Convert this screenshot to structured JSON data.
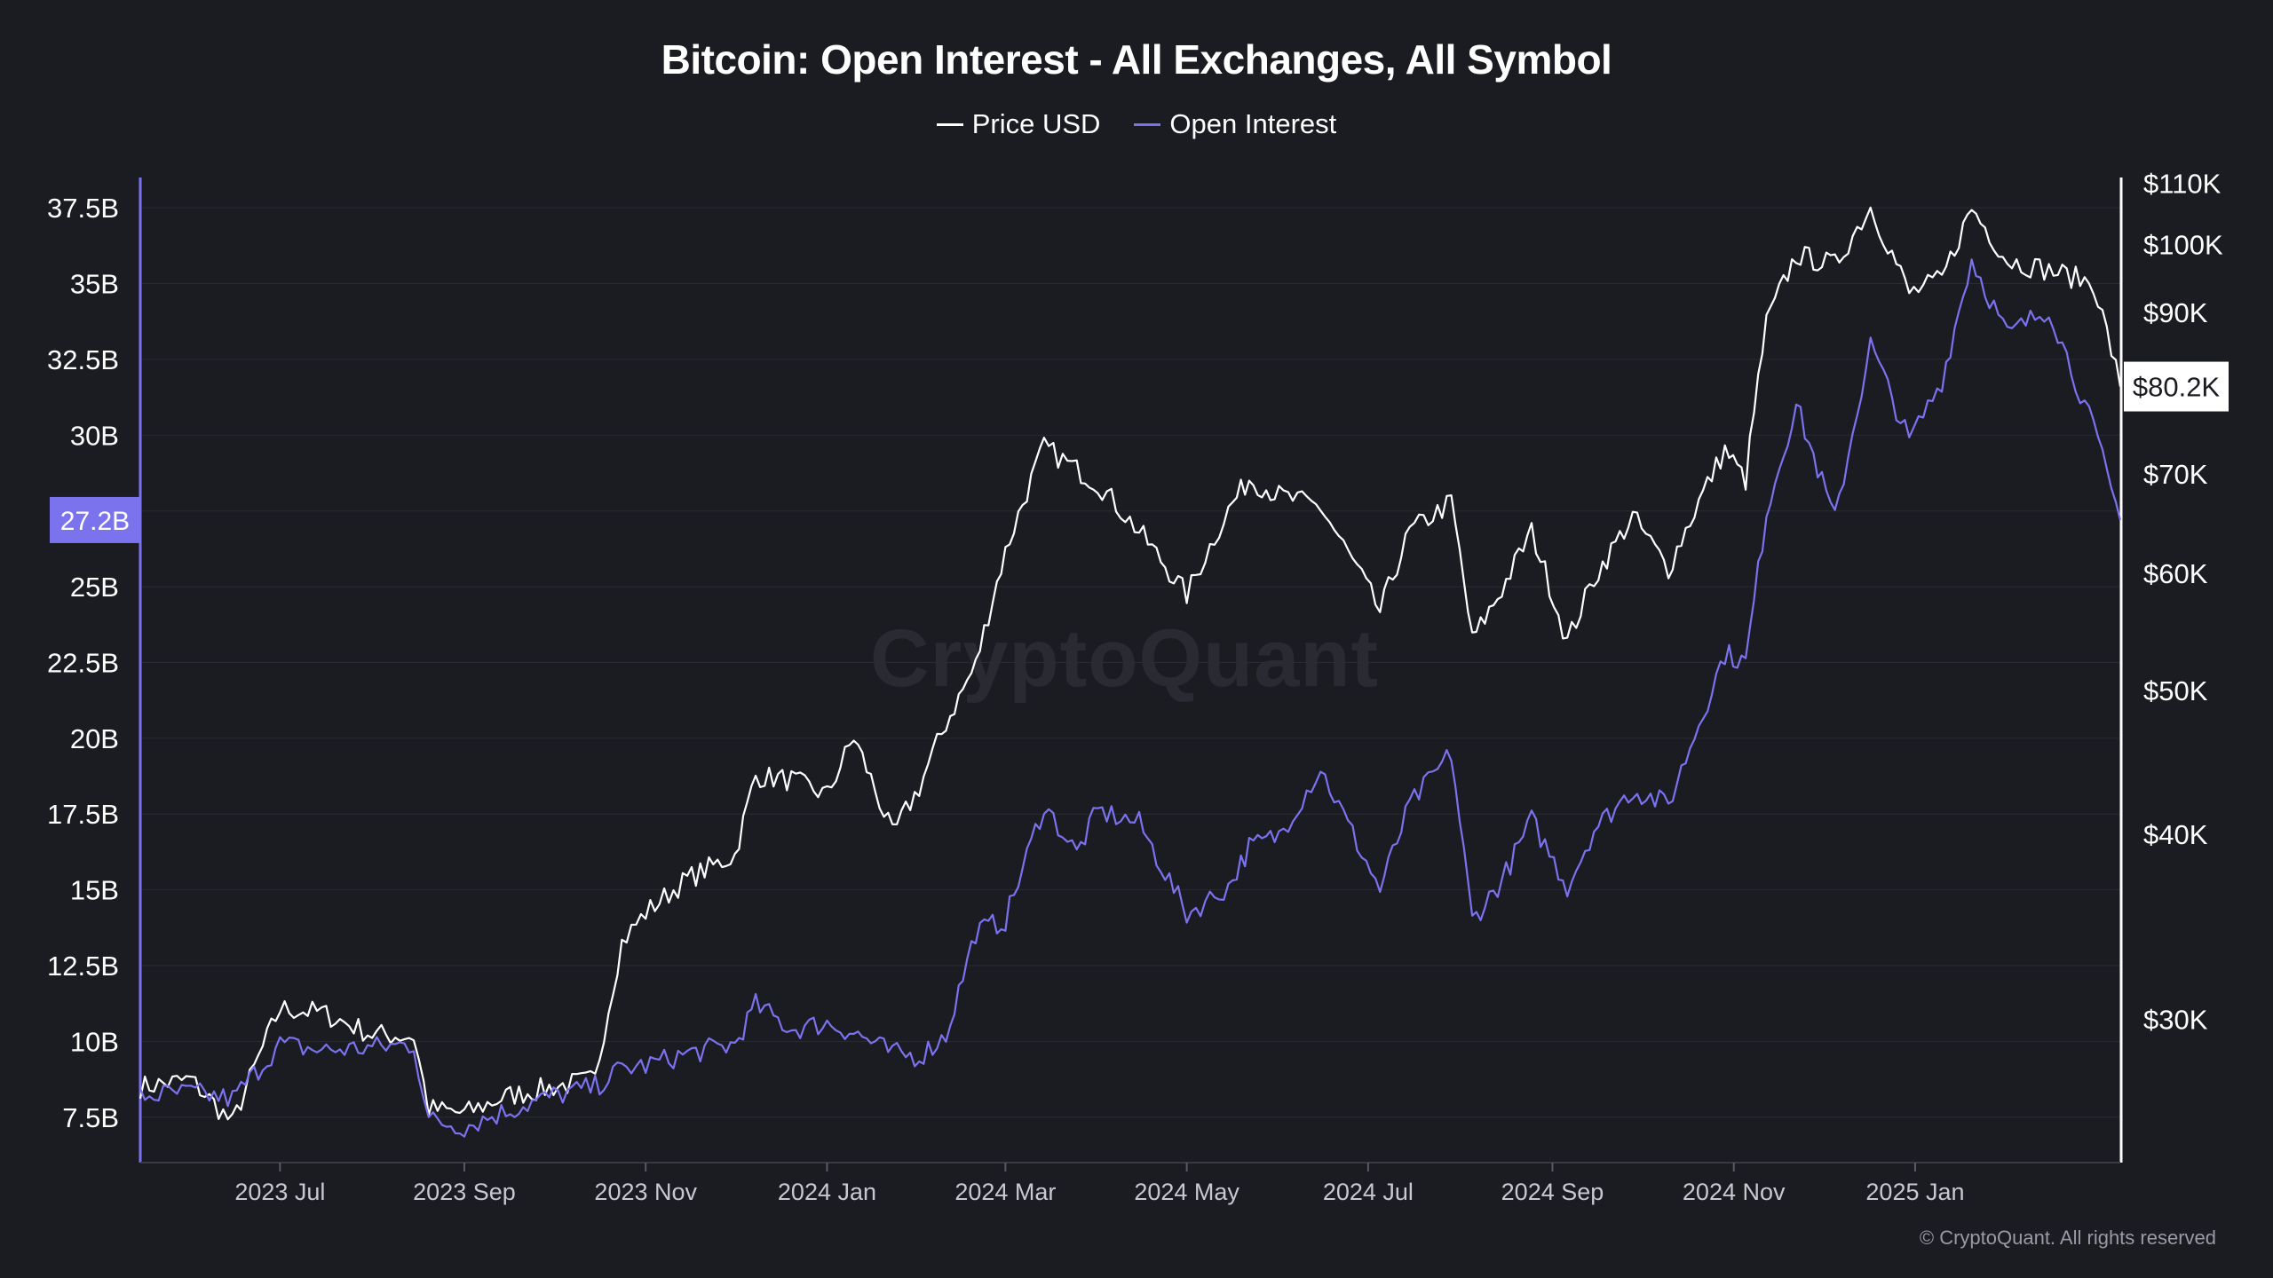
{
  "title": "Bitcoin: Open Interest - All Exchanges, All Symbol",
  "watermark": "CryptoQuant",
  "footer": "© CryptoQuant. All rights reserved",
  "colors": {
    "background": "#1b1b22",
    "price": "#ffffff",
    "open_interest": "#7b72ee",
    "grid": "#2b2b34",
    "axis_text": "#ffffff",
    "tick_text": "#c8c8d0"
  },
  "chart_data": {
    "type": "line",
    "title": "Bitcoin: Open Interest - All Exchanges, All Symbol",
    "legend_position": "top-center",
    "grid": true,
    "x_tick_labels": [
      "2023 Jul",
      "2023 Sep",
      "2023 Nov",
      "2024 Jan",
      "2024 Mar",
      "2024 May",
      "2024 Jul",
      "2024 Sep",
      "2024 Nov",
      "2025 Jan"
    ],
    "x_range": [
      "2023-05-15",
      "2025-03-11"
    ],
    "left_axis": {
      "series": "Open Interest",
      "ylim": [
        6000000000,
        38500000000
      ],
      "tick_values": [
        7500000000,
        10000000000,
        12500000000,
        15000000000,
        17500000000,
        20000000000,
        22500000000,
        25000000000,
        27500000000,
        30000000000,
        32500000000,
        35000000000,
        37500000000
      ],
      "tick_labels": [
        "7.5B",
        "10B",
        "12.5B",
        "15B",
        "17.5B",
        "20B",
        "22.5B",
        "25B",
        "",
        "30B",
        "32.5B",
        "35B",
        "37.5B"
      ],
      "current_value": 27200000000,
      "current_label": "27.2B"
    },
    "right_axis": {
      "series": "Price USD",
      "scale": "log",
      "ylim": [
        24000,
        111000
      ],
      "tick_values": [
        30000,
        40000,
        50000,
        60000,
        70000,
        90000,
        100000,
        110000
      ],
      "tick_labels": [
        "$30K",
        "$40K",
        "$50K",
        "$60K",
        "$70K",
        "$90K",
        "$100K",
        "$110K"
      ],
      "current_value": 80200,
      "current_label": "$80.2K"
    },
    "series": [
      {
        "name": "Price USD",
        "axis": "right",
        "x": [
          "2023-05-15",
          "2023-06-01",
          "2023-06-15",
          "2023-07-01",
          "2023-07-15",
          "2023-08-01",
          "2023-08-15",
          "2023-08-20",
          "2023-09-01",
          "2023-09-15",
          "2023-10-01",
          "2023-10-15",
          "2023-10-24",
          "2023-11-01",
          "2023-11-15",
          "2023-12-01",
          "2023-12-08",
          "2023-12-20",
          "2024-01-01",
          "2024-01-10",
          "2024-01-23",
          "2024-02-01",
          "2024-02-10",
          "2024-02-20",
          "2024-03-01",
          "2024-03-14",
          "2024-03-25",
          "2024-04-01",
          "2024-04-15",
          "2024-05-01",
          "2024-05-15",
          "2024-05-22",
          "2024-06-01",
          "2024-06-15",
          "2024-07-05",
          "2024-07-15",
          "2024-07-29",
          "2024-08-05",
          "2024-08-15",
          "2024-08-25",
          "2024-09-06",
          "2024-09-15",
          "2024-09-28",
          "2024-10-10",
          "2024-10-29",
          "2024-11-05",
          "2024-11-12",
          "2024-11-22",
          "2024-12-05",
          "2024-12-17",
          "2024-12-30",
          "2025-01-10",
          "2025-01-20",
          "2025-02-01",
          "2025-02-15",
          "2025-03-02",
          "2025-03-11"
        ],
        "values": [
          27000,
          27300,
          25500,
          30500,
          30300,
          29300,
          29200,
          26100,
          25900,
          26600,
          27000,
          27300,
          33800,
          35400,
          37300,
          38700,
          43800,
          43500,
          42500,
          46500,
          39900,
          43000,
          47500,
          52000,
          62000,
          73000,
          70500,
          69000,
          64000,
          58000,
          66200,
          69500,
          67700,
          66500,
          56500,
          64000,
          67000,
          54000,
          58500,
          64000,
          53900,
          59500,
          65500,
          60400,
          72700,
          69300,
          88500,
          98400,
          96900,
          106000,
          92700,
          94700,
          105800,
          97600,
          96100,
          94200,
          80200
        ]
      },
      {
        "name": "Open Interest",
        "axis": "left",
        "x": [
          "2023-05-15",
          "2023-06-01",
          "2023-06-15",
          "2023-07-01",
          "2023-07-15",
          "2023-08-01",
          "2023-08-15",
          "2023-08-20",
          "2023-09-01",
          "2023-09-15",
          "2023-10-01",
          "2023-10-15",
          "2023-10-24",
          "2023-11-01",
          "2023-11-15",
          "2023-12-01",
          "2023-12-08",
          "2023-12-20",
          "2024-01-01",
          "2024-01-10",
          "2024-01-23",
          "2024-02-01",
          "2024-02-10",
          "2024-02-20",
          "2024-03-01",
          "2024-03-14",
          "2024-03-25",
          "2024-04-01",
          "2024-04-15",
          "2024-05-01",
          "2024-05-15",
          "2024-05-22",
          "2024-06-01",
          "2024-06-15",
          "2024-07-05",
          "2024-07-15",
          "2024-07-29",
          "2024-08-05",
          "2024-08-15",
          "2024-08-25",
          "2024-09-06",
          "2024-09-15",
          "2024-09-28",
          "2024-10-10",
          "2024-10-29",
          "2024-11-05",
          "2024-11-12",
          "2024-11-22",
          "2024-12-05",
          "2024-12-17",
          "2024-12-30",
          "2025-01-10",
          "2025-01-20",
          "2025-02-01",
          "2025-02-15",
          "2025-03-02",
          "2025-03-11"
        ],
        "values": [
          8200000000,
          8300000000,
          8100000000,
          9900000000,
          9700000000,
          9800000000,
          9900000000,
          7400000000,
          7200000000,
          7700000000,
          8200000000,
          8500000000,
          9100000000,
          9200000000,
          9600000000,
          9900000000,
          11200000000,
          10400000000,
          10600000000,
          10300000000,
          9600000000,
          9500000000,
          10200000000,
          13600000000,
          14000000000,
          17800000000,
          16200000000,
          17600000000,
          17200000000,
          14200000000,
          15100000000,
          16400000000,
          16800000000,
          19000000000,
          15000000000,
          17800000000,
          19500000000,
          14000000000,
          15300000000,
          17300000000,
          15100000000,
          17000000000,
          18300000000,
          17800000000,
          22800000000,
          22500000000,
          27500000000,
          31000000000,
          27200000000,
          33000000000,
          29800000000,
          31800000000,
          35800000000,
          33300000000,
          34200000000,
          30200000000,
          27200000000
        ]
      }
    ]
  }
}
